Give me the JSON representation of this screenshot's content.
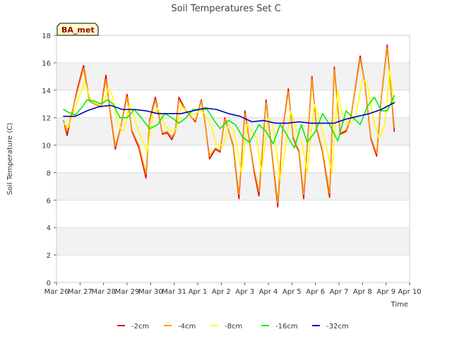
{
  "chart_data": {
    "type": "line",
    "title": "Soil Temperatures Set C",
    "xlabel": "Time",
    "ylabel": "Soil Temperature (C)",
    "ylim": [
      0,
      18
    ],
    "yticks": [
      0,
      2,
      4,
      6,
      8,
      10,
      12,
      14,
      16,
      18
    ],
    "xticks": [
      "Mar 26",
      "Mar 27",
      "Mar 28",
      "Mar 29",
      "Mar 30",
      "Mar 31",
      "Apr 1",
      "Apr 2",
      "Apr 3",
      "Apr 4",
      "Apr 5",
      "Apr 6",
      "Apr 7",
      "Apr 8",
      "Apr 9",
      "Apr 10"
    ],
    "x_unit": "days from Mar 26",
    "xlim": [
      0,
      15
    ],
    "grid": "horizontal bands",
    "legend_position": "bottom",
    "badge": "BA_met",
    "series": [
      {
        "name": "-2cm",
        "color": "#dd0000",
        "x": [
          0.3,
          0.45,
          0.9,
          1.15,
          1.4,
          1.6,
          1.9,
          2.1,
          2.25,
          2.5,
          2.75,
          3.0,
          3.2,
          3.5,
          3.8,
          3.95,
          4.2,
          4.5,
          4.7,
          4.9,
          5.05,
          5.2,
          5.5,
          5.75,
          5.9,
          6.15,
          6.3,
          6.5,
          6.75,
          6.95,
          7.15,
          7.5,
          7.75,
          8.0,
          8.4,
          8.6,
          8.9,
          9.05,
          9.4,
          9.6,
          9.85,
          10.05,
          10.3,
          10.5,
          10.85,
          11.05,
          11.3,
          11.6,
          11.8,
          12.05,
          12.3,
          12.5,
          12.9,
          13.1,
          13.35,
          13.6,
          13.8,
          14.05,
          14.35
        ],
        "y": [
          11.8,
          10.7,
          14.2,
          15.8,
          13.2,
          13.0,
          12.8,
          15.1,
          12.8,
          9.7,
          11.5,
          13.7,
          11.0,
          9.8,
          7.6,
          11.8,
          13.5,
          10.8,
          10.9,
          10.4,
          11.0,
          13.5,
          12.5,
          12.0,
          11.7,
          13.3,
          11.8,
          9.0,
          9.7,
          9.5,
          12.0,
          10.0,
          6.1,
          12.5,
          8.0,
          6.3,
          13.3,
          11.0,
          5.5,
          11.0,
          14.1,
          10.5,
          9.5,
          6.1,
          15.0,
          11.2,
          9.5,
          6.2,
          15.7,
          10.8,
          11.0,
          12.0,
          16.5,
          14.5,
          10.5,
          9.2,
          13.5,
          17.3,
          11.0
        ]
      },
      {
        "name": "-4cm",
        "color": "#ff9900",
        "x": [
          0.3,
          0.45,
          0.9,
          1.15,
          1.4,
          1.6,
          1.9,
          2.1,
          2.25,
          2.5,
          2.75,
          3.0,
          3.2,
          3.5,
          3.8,
          3.95,
          4.2,
          4.5,
          4.7,
          4.9,
          5.05,
          5.2,
          5.5,
          5.75,
          5.9,
          6.15,
          6.3,
          6.5,
          6.75,
          6.95,
          7.15,
          7.5,
          7.75,
          8.0,
          8.4,
          8.6,
          8.9,
          9.05,
          9.4,
          9.6,
          9.85,
          10.05,
          10.3,
          10.5,
          10.85,
          11.05,
          11.3,
          11.6,
          11.8,
          12.05,
          12.3,
          12.5,
          12.9,
          13.1,
          13.35,
          13.6,
          13.8,
          14.05,
          14.35
        ],
        "y": [
          11.8,
          11.0,
          14.0,
          15.6,
          13.2,
          13.0,
          12.8,
          14.8,
          12.9,
          9.9,
          11.5,
          13.5,
          11.1,
          10.0,
          7.9,
          11.7,
          13.3,
          10.9,
          11.0,
          10.6,
          11.0,
          13.3,
          12.5,
          12.0,
          11.8,
          13.2,
          11.8,
          9.2,
          9.8,
          9.6,
          11.9,
          10.1,
          6.4,
          12.3,
          8.2,
          6.6,
          13.1,
          11.0,
          5.8,
          11.0,
          13.9,
          10.6,
          9.6,
          6.4,
          14.8,
          11.3,
          9.6,
          6.5,
          15.5,
          10.9,
          11.1,
          12.0,
          16.3,
          14.5,
          10.6,
          9.4,
          13.5,
          17.1,
          11.3
        ]
      },
      {
        "name": "-8cm",
        "color": "#ffff00",
        "x": [
          0.3,
          0.5,
          0.95,
          1.2,
          1.45,
          1.7,
          2.0,
          2.2,
          2.4,
          2.6,
          2.85,
          3.1,
          3.3,
          3.6,
          3.85,
          4.1,
          4.3,
          4.6,
          4.85,
          5.1,
          5.3,
          5.55,
          5.8,
          6.1,
          6.3,
          6.55,
          6.8,
          7.1,
          7.3,
          7.55,
          7.85,
          8.1,
          8.5,
          8.7,
          9.0,
          9.2,
          9.5,
          9.7,
          9.95,
          10.2,
          10.45,
          10.65,
          10.95,
          11.15,
          11.45,
          11.7,
          11.95,
          12.15,
          12.45,
          12.7,
          13.0,
          13.2,
          13.45,
          13.7,
          13.95,
          14.15,
          14.35
        ],
        "y": [
          11.6,
          11.3,
          13.5,
          14.6,
          13.3,
          13.0,
          13.0,
          14.2,
          13.5,
          11.5,
          11.0,
          13.0,
          12.0,
          10.5,
          9.5,
          12.2,
          12.7,
          11.5,
          11.0,
          11.2,
          12.8,
          12.5,
          12.2,
          12.5,
          12.3,
          11.5,
          10.0,
          10.0,
          11.5,
          11.0,
          8.0,
          11.5,
          10.5,
          8.0,
          12.0,
          11.5,
          7.5,
          9.5,
          12.5,
          11.0,
          10.0,
          8.0,
          13.0,
          12.0,
          10.0,
          8.0,
          14.0,
          12.0,
          11.5,
          12.0,
          14.8,
          14.5,
          12.0,
          10.5,
          11.5,
          15.5,
          13.0
        ]
      },
      {
        "name": "-16cm",
        "color": "#00ee00",
        "x": [
          0.3,
          0.5,
          0.8,
          1.1,
          1.3,
          1.6,
          1.9,
          2.15,
          2.4,
          2.7,
          3.0,
          3.3,
          3.6,
          3.95,
          4.3,
          4.6,
          4.9,
          5.2,
          5.5,
          5.8,
          6.1,
          6.4,
          6.7,
          6.95,
          7.3,
          7.6,
          7.9,
          8.2,
          8.6,
          8.9,
          9.2,
          9.5,
          9.7,
          10.1,
          10.4,
          10.65,
          11.0,
          11.3,
          11.6,
          11.95,
          12.3,
          12.6,
          12.9,
          13.2,
          13.5,
          13.8,
          14.05,
          14.35
        ],
        "y": [
          12.6,
          12.4,
          12.2,
          12.8,
          13.3,
          13.2,
          13.0,
          13.3,
          13.0,
          12.0,
          12.0,
          12.6,
          12.0,
          11.2,
          11.5,
          12.3,
          12.0,
          11.6,
          12.0,
          12.6,
          12.6,
          12.6,
          11.8,
          11.2,
          11.8,
          11.5,
          10.6,
          10.2,
          11.5,
          11.0,
          10.1,
          11.5,
          11.0,
          9.8,
          11.5,
          10.2,
          11.0,
          12.3,
          11.5,
          10.3,
          12.5,
          12.0,
          11.5,
          12.8,
          13.5,
          12.5,
          12.5,
          13.6
        ]
      },
      {
        "name": "-32cm",
        "color": "#0000bb",
        "x": [
          0.3,
          0.8,
          1.3,
          1.8,
          2.3,
          2.8,
          3.3,
          3.8,
          4.3,
          4.8,
          5.3,
          5.8,
          6.3,
          6.8,
          7.3,
          7.8,
          8.3,
          8.8,
          9.3,
          9.8,
          10.3,
          10.8,
          11.3,
          11.8,
          12.3,
          12.8,
          13.3,
          13.8,
          14.35
        ],
        "y": [
          12.1,
          12.1,
          12.5,
          12.8,
          12.9,
          12.6,
          12.6,
          12.5,
          12.3,
          12.3,
          12.3,
          12.5,
          12.7,
          12.6,
          12.3,
          12.1,
          11.7,
          11.8,
          11.6,
          11.6,
          11.7,
          11.6,
          11.6,
          11.6,
          11.9,
          12.1,
          12.3,
          12.6,
          13.1
        ]
      }
    ]
  }
}
